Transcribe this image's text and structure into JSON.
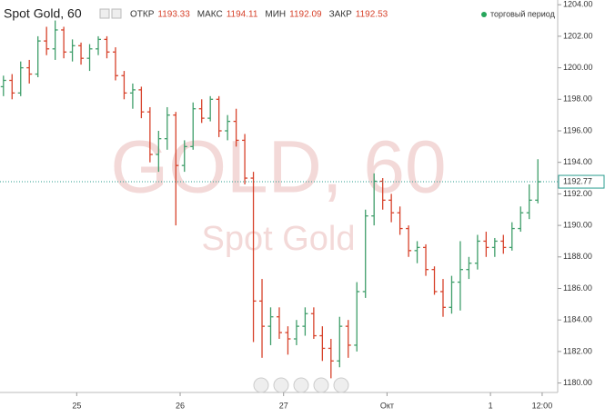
{
  "chart_data": {
    "type": "ohlc",
    "title": "Spot Gold, 60",
    "header": [
      {
        "label": "ОТКР",
        "value": 1193.33
      },
      {
        "label": "МАКС",
        "value": 1194.11
      },
      {
        "label": "МИН",
        "value": 1192.09
      },
      {
        "label": "ЗАКР",
        "value": 1192.53
      }
    ],
    "header_value_color": "#d7422b",
    "status": "торговый период",
    "status_color": "#26a65b",
    "watermark": "GOLD, 60",
    "watermark_sub": "Spot Gold",
    "up_color": "#3f9e6a",
    "down_color": "#d7422b",
    "last_price": 1192.77,
    "last_price_color": "#2a9d8f",
    "x": [
      -17,
      -15,
      -13,
      -11,
      -9,
      -7,
      -5,
      -3,
      -1,
      1,
      3,
      5,
      7,
      9,
      11,
      13,
      15,
      17,
      19,
      21,
      23,
      25,
      27,
      29,
      31,
      33,
      35,
      37,
      39,
      41,
      43,
      45,
      47,
      49,
      51,
      53,
      55,
      57,
      59,
      61,
      63,
      65,
      67,
      69,
      71,
      73,
      75,
      77,
      79,
      81,
      83,
      85,
      87,
      89,
      91,
      93,
      95,
      97,
      99,
      101,
      103,
      105,
      107
    ],
    "open": [
      1198.8,
      1199.2,
      1198.4,
      1200.0,
      1199.6,
      1201.7,
      1201.2,
      1202.4,
      1201.0,
      1201.4,
      1200.6,
      1201.2,
      1201.8,
      1201.0,
      1199.5,
      1198.4,
      1198.6,
      1197.2,
      1194.5,
      1195.5,
      1197.0,
      1193.8,
      1195.0,
      1197.4,
      1196.8,
      1198.0,
      1196.0,
      1196.6,
      1195.4,
      1193.0,
      1185.2,
      1183.6,
      1184.2,
      1183.2,
      1182.8,
      1183.6,
      1184.4,
      1183.0,
      1182.2,
      1181.4,
      1183.6,
      1182.4,
      1185.8,
      1190.6,
      1192.8,
      1191.6,
      1190.8,
      1189.8,
      1188.4,
      1188.6,
      1187.2,
      1185.8,
      1184.8,
      1186.4,
      1187.2,
      1187.6,
      1189.0,
      1188.6,
      1189.0,
      1188.6,
      1189.8,
      1190.8,
      1191.6
    ],
    "high": [
      1199.5,
      1199.6,
      1200.4,
      1200.5,
      1202.0,
      1202.6,
      1203.0,
      1202.6,
      1201.8,
      1201.6,
      1201.5,
      1202.0,
      1202.0,
      1201.3,
      1199.8,
      1199.0,
      1198.8,
      1197.5,
      1196.0,
      1197.5,
      1197.2,
      1195.4,
      1197.8,
      1198.0,
      1198.2,
      1198.2,
      1197.0,
      1197.4,
      1195.8,
      1193.4,
      1186.6,
      1184.8,
      1184.8,
      1183.6,
      1184.0,
      1184.8,
      1184.8,
      1183.6,
      1182.8,
      1184.2,
      1184.0,
      1186.4,
      1191.0,
      1193.3,
      1193.0,
      1192.0,
      1191.2,
      1190.0,
      1189.0,
      1188.8,
      1187.4,
      1186.6,
      1186.8,
      1189.0,
      1188.0,
      1189.4,
      1189.6,
      1189.2,
      1189.4,
      1190.2,
      1191.2,
      1192.6,
      1194.2
    ],
    "low": [
      1198.2,
      1198.0,
      1198.2,
      1199.0,
      1199.4,
      1200.8,
      1200.5,
      1200.6,
      1200.4,
      1200.2,
      1199.8,
      1200.8,
      1200.6,
      1199.2,
      1198.0,
      1197.4,
      1196.8,
      1194.0,
      1193.4,
      1194.8,
      1190.0,
      1193.4,
      1194.8,
      1196.5,
      1196.6,
      1195.6,
      1195.4,
      1195.0,
      1192.6,
      1182.6,
      1181.6,
      1182.4,
      1182.8,
      1181.8,
      1182.4,
      1183.0,
      1182.8,
      1181.4,
      1180.3,
      1181.0,
      1181.6,
      1182.0,
      1185.4,
      1190.0,
      1191.0,
      1190.2,
      1189.4,
      1188.0,
      1187.6,
      1186.8,
      1185.6,
      1184.2,
      1184.4,
      1184.6,
      1186.6,
      1187.2,
      1188.0,
      1188.0,
      1188.2,
      1188.4,
      1189.6,
      1190.4,
      1191.4
    ],
    "close": [
      1199.2,
      1198.4,
      1200.0,
      1199.6,
      1201.7,
      1201.2,
      1202.4,
      1201.0,
      1201.4,
      1200.6,
      1201.2,
      1201.8,
      1201.0,
      1199.5,
      1198.4,
      1198.6,
      1197.2,
      1194.5,
      1195.5,
      1197.0,
      1193.8,
      1195.0,
      1197.4,
      1196.8,
      1198.0,
      1196.0,
      1196.6,
      1195.4,
      1193.0,
      1185.2,
      1183.6,
      1184.2,
      1183.2,
      1182.8,
      1183.6,
      1184.4,
      1183.0,
      1182.2,
      1181.4,
      1183.6,
      1182.4,
      1185.8,
      1190.6,
      1192.8,
      1191.6,
      1190.8,
      1189.8,
      1188.4,
      1188.6,
      1187.2,
      1185.8,
      1184.8,
      1186.4,
      1187.2,
      1187.6,
      1189.0,
      1188.6,
      1189.0,
      1188.6,
      1189.8,
      1190.8,
      1191.6,
      1192.77
    ],
    "xlim": [
      -17.8,
      111.6
    ],
    "xticks": [
      {
        "value": 0,
        "label": "25"
      },
      {
        "value": 24,
        "label": "26"
      },
      {
        "value": 48,
        "label": "27"
      },
      {
        "value": 72,
        "label": "Окт"
      },
      {
        "value": 96,
        "label": "1"
      },
      {
        "value": 108,
        "label": "12:00"
      }
    ],
    "ylim": [
      1179.4,
      1204.3
    ],
    "yticks": [
      {
        "value": 1180,
        "label": "1180.00"
      },
      {
        "value": 1182,
        "label": "1182.00"
      },
      {
        "value": 1184,
        "label": "1184.00"
      },
      {
        "value": 1186,
        "label": "1186.00"
      },
      {
        "value": 1188,
        "label": "1188.00"
      },
      {
        "value": 1190,
        "label": "1190.00"
      },
      {
        "value": 1192,
        "label": "1192.00"
      },
      {
        "value": 1194,
        "label": "1194.00"
      },
      {
        "value": 1196,
        "label": "1196.00"
      },
      {
        "value": 1198,
        "label": "1198.00"
      },
      {
        "value": 1200,
        "label": "1200.00"
      },
      {
        "value": 1202,
        "label": "1202.00"
      },
      {
        "value": 1204,
        "label": "1204.00"
      }
    ]
  }
}
